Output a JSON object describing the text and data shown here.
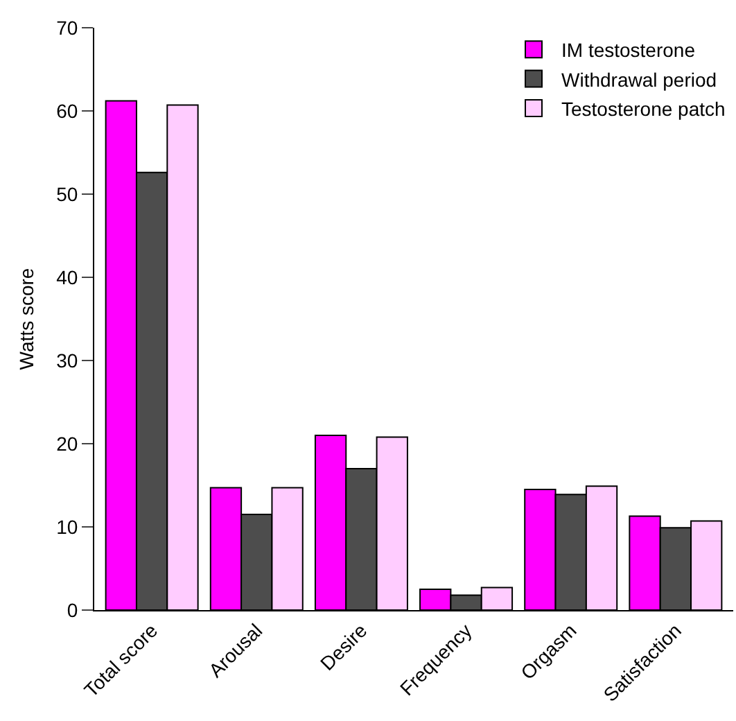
{
  "chart_data": {
    "type": "bar",
    "ylabel": "Watts score",
    "categories": [
      "Total score",
      "Arousal",
      "Desire",
      "Frequency",
      "Orgasm",
      "Satisfaction"
    ],
    "series": [
      {
        "name": "IM testosterone",
        "color": "#ff00ff",
        "values": [
          61.2,
          14.7,
          21.0,
          2.5,
          14.5,
          11.3
        ]
      },
      {
        "name": "Withdrawal period",
        "color": "#4d4d4d",
        "values": [
          52.6,
          11.5,
          17.0,
          1.8,
          13.9,
          9.9
        ]
      },
      {
        "name": "Testosterone patch",
        "color": "#ffccff",
        "values": [
          60.7,
          14.7,
          20.8,
          2.7,
          14.9,
          10.7
        ]
      }
    ],
    "ylim": [
      0,
      70
    ],
    "yticks": [
      0,
      10,
      20,
      30,
      40,
      50,
      60,
      70
    ],
    "grid": false,
    "legend": "top right"
  }
}
